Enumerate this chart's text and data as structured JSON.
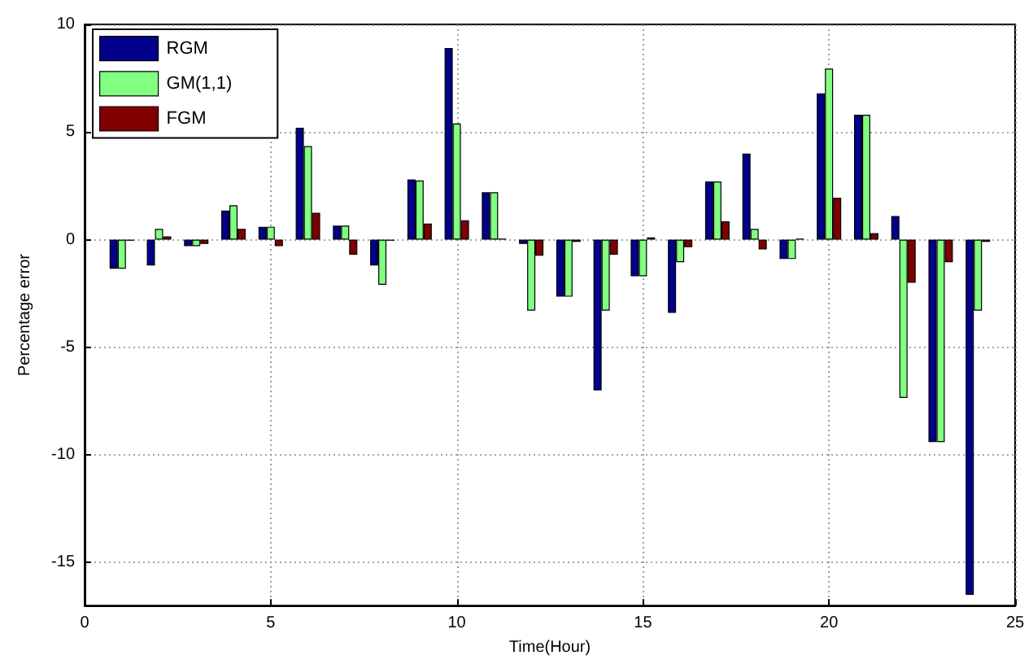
{
  "chart_data": {
    "type": "bar",
    "xlabel": "Time(Hour)",
    "ylabel": "Percentage error",
    "x": [
      1,
      2,
      3,
      4,
      5,
      6,
      7,
      8,
      9,
      10,
      11,
      12,
      13,
      14,
      15,
      16,
      17,
      18,
      19,
      20,
      21,
      22,
      23,
      24
    ],
    "series": [
      {
        "name": "RGM",
        "color": "#00008b",
        "values": [
          -1.35,
          -1.2,
          -0.3,
          1.35,
          0.6,
          5.2,
          0.65,
          -1.2,
          2.8,
          8.9,
          2.2,
          -0.2,
          -2.65,
          -7.0,
          -1.7,
          -3.4,
          2.7,
          4.0,
          -0.9,
          6.8,
          5.8,
          1.1,
          -9.4,
          -16.5
        ]
      },
      {
        "name": "GM(1,1)",
        "color": "#80ff80",
        "values": [
          -1.35,
          0.5,
          -0.3,
          1.6,
          0.6,
          4.35,
          0.65,
          -2.1,
          2.75,
          5.4,
          2.2,
          -3.3,
          -2.65,
          -3.3,
          -1.7,
          -1.05,
          2.7,
          0.5,
          -0.9,
          7.95,
          5.8,
          -7.35,
          -9.4,
          -3.3
        ]
      },
      {
        "name": "FGM",
        "color": "#800000",
        "values": [
          -0.05,
          0.15,
          -0.2,
          0.5,
          -0.3,
          1.25,
          -0.7,
          -0.05,
          0.75,
          0.9,
          0.05,
          -0.75,
          -0.1,
          -0.7,
          0.1,
          -0.35,
          0.85,
          -0.45,
          0.05,
          1.95,
          0.3,
          -2.0,
          -1.05,
          -0.1
        ]
      }
    ],
    "xlim": [
      0,
      25
    ],
    "xticks": [
      0,
      5,
      10,
      15,
      20,
      25
    ],
    "ylim": [
      -17,
      10
    ],
    "yticks": [
      -15,
      -10,
      -5,
      0,
      5,
      10
    ],
    "grid": true,
    "legend": "top left"
  }
}
